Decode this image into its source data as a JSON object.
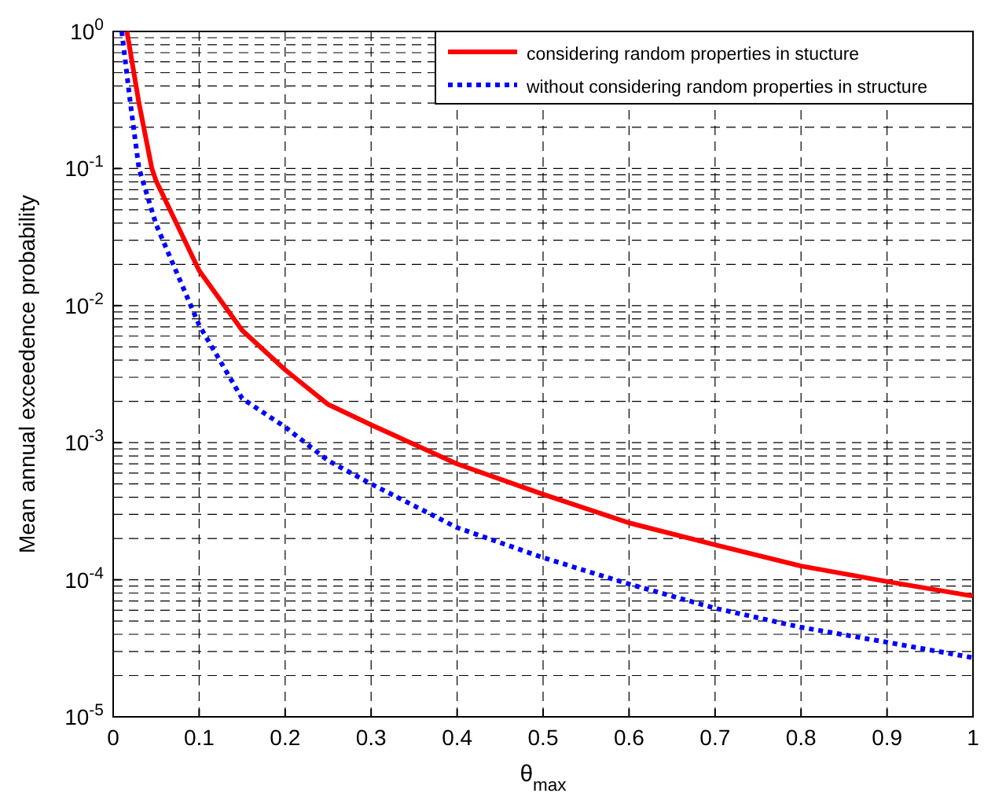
{
  "chart_data": {
    "type": "line",
    "xlabel": "θ$_{max}$",
    "ylabel": "Mean annual  exceedence probability",
    "log": "y",
    "grid": true,
    "legend": "top right",
    "xlim": [
      0,
      1
    ],
    "xticks": [
      0,
      0.1,
      0.2,
      0.3,
      0.4,
      0.5,
      0.6,
      0.7,
      0.8,
      0.9,
      1
    ],
    "ylim": [
      1e-05,
      1
    ],
    "yticks": [
      {
        "value": 1e-05,
        "label": "10$^{-5}$"
      },
      {
        "value": 0.0001,
        "label": "10$^{-4}$"
      },
      {
        "value": 0.001,
        "label": "10$^{-3}$"
      },
      {
        "value": 0.01,
        "label": "10$^{-2}$"
      },
      {
        "value": 0.1,
        "label": "10$^{-1}$"
      },
      {
        "value": 1,
        "label": "10$^{0}$"
      }
    ],
    "series": [
      {
        "name": "considering random properties in stucture",
        "color": "#ff0000",
        "line_style": "solid",
        "x": [
          0.016,
          0.03,
          0.045,
          0.05,
          0.1,
          0.15,
          0.2,
          0.25,
          0.3,
          0.4,
          0.5,
          0.6,
          0.7,
          0.8,
          0.9,
          1
        ],
        "values": [
          1,
          0.3,
          0.1,
          0.081,
          0.018,
          0.0066,
          0.0034,
          0.0019,
          0.00135,
          0.0007,
          0.00042,
          0.00026,
          0.00018,
          0.000126,
          9.7e-05,
          7.6e-05
        ]
      },
      {
        "name": "without considering random properties in structure",
        "color": "#0000ff",
        "line_style": "dotted",
        "x": [
          0.01,
          0.02,
          0.03,
          0.05,
          0.1,
          0.15,
          0.2,
          0.25,
          0.3,
          0.4,
          0.5,
          0.6,
          0.7,
          0.8,
          0.9,
          1
        ],
        "values": [
          1,
          0.3,
          0.1,
          0.039,
          0.0072,
          0.0021,
          0.0013,
          0.00074,
          0.0005,
          0.00024,
          0.000145,
          9.3e-05,
          6.2e-05,
          4.5e-05,
          3.5e-05,
          2.7e-05
        ]
      }
    ]
  }
}
